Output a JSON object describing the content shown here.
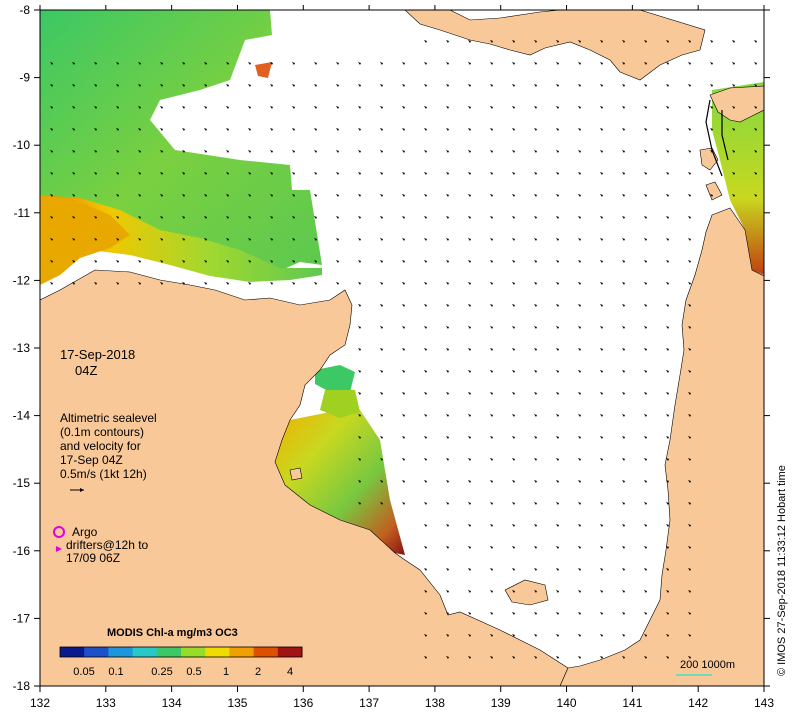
{
  "map": {
    "x_ticks": [
      "132",
      "133",
      "134",
      "135",
      "136",
      "137",
      "138",
      "139",
      "140",
      "141",
      "142",
      "143"
    ],
    "y_ticks": [
      "-8",
      "-9",
      "-10",
      "-11",
      "-12",
      "-13",
      "-14",
      "-15",
      "-16",
      "-17",
      "-18"
    ],
    "colors": {
      "land": "#f9c898",
      "ocean_nodata": "#ffffff",
      "frame": "#000000",
      "argo": "#e000e0",
      "scale_bar": "#40e0c0"
    }
  },
  "annotations": {
    "date": "17-Sep-2018",
    "time": "04Z",
    "altimetry_lines": [
      "Altimetric sealevel",
      "(0.1m contours)",
      "and velocity for",
      "17-Sep 04Z",
      "0.5m/s (1kt 12h)"
    ],
    "argo_label": "Argo",
    "drifters_lines": [
      "drifters@12h to",
      "17/09 06Z"
    ]
  },
  "colorbar": {
    "title": "MODIS Chl-a mg/m3 OC3",
    "labels": [
      "0.05",
      "0.1",
      "0.25",
      "0.5",
      "1",
      "2",
      "4"
    ],
    "colors": [
      "#0a1a8c",
      "#1e50c8",
      "#1e96dc",
      "#28c8c8",
      "#3cc864",
      "#96dc28",
      "#f0dc00",
      "#f0a000",
      "#dc5000",
      "#a01414"
    ]
  },
  "scale": {
    "label": "200  1000m"
  },
  "credit": "© IMOS 27-Sep-2018 11:33:12 Hobart time"
}
